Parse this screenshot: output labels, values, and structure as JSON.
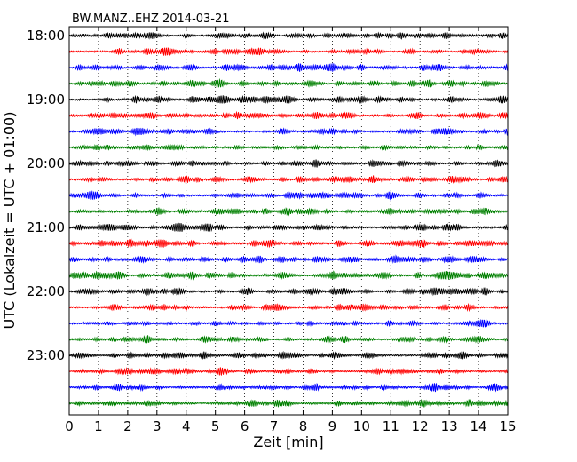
{
  "chart_data": {
    "type": "line",
    "title": "BW.MANZ..EHZ 2014-03-21",
    "xlabel": "Zeit  [min]",
    "ylabel": "UTC (Lokalzeit = UTC + 01:00)",
    "xlim": [
      0,
      15
    ],
    "xticks": [
      "0",
      "1",
      "2",
      "3",
      "4",
      "5",
      "6",
      "7",
      "8",
      "9",
      "10",
      "11",
      "12",
      "13",
      "14",
      "15"
    ],
    "yticks": [
      "18:00",
      "19:00",
      "20:00",
      "21:00",
      "22:00",
      "23:00"
    ],
    "minutes_per_trace": 15,
    "trace_count": 24,
    "trace_colors": [
      "#000000",
      "#ff0000",
      "#0000ff",
      "#008000"
    ],
    "grid": "vertical dotted at each minute"
  }
}
